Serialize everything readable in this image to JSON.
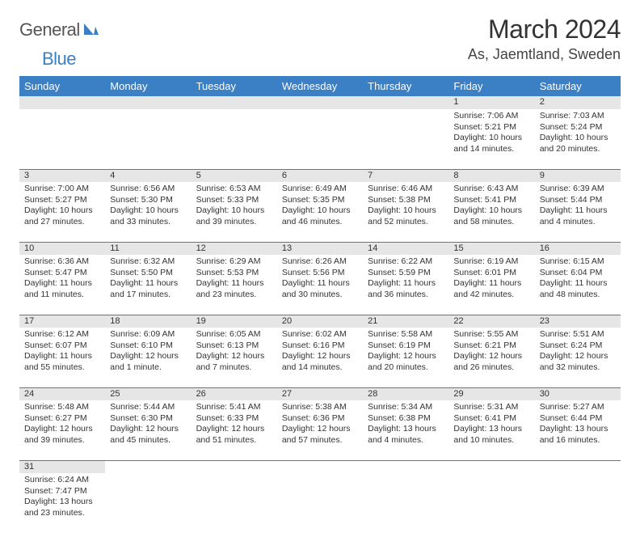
{
  "brand": {
    "name1": "General",
    "name2": "Blue"
  },
  "title": "March 2024",
  "location": "As, Jaemtland, Sweden",
  "colors": {
    "header_bg": "#3b7fc4",
    "header_fg": "#ffffff",
    "daynum_bg": "#e6e6e6",
    "rule": "#3b7fc4",
    "text": "#333333"
  },
  "weekdays": [
    "Sunday",
    "Monday",
    "Tuesday",
    "Wednesday",
    "Thursday",
    "Friday",
    "Saturday"
  ],
  "weeks": [
    [
      null,
      null,
      null,
      null,
      null,
      {
        "n": "1",
        "sr": "Sunrise: 7:06 AM",
        "ss": "Sunset: 5:21 PM",
        "d1": "Daylight: 10 hours",
        "d2": "and 14 minutes."
      },
      {
        "n": "2",
        "sr": "Sunrise: 7:03 AM",
        "ss": "Sunset: 5:24 PM",
        "d1": "Daylight: 10 hours",
        "d2": "and 20 minutes."
      }
    ],
    [
      {
        "n": "3",
        "sr": "Sunrise: 7:00 AM",
        "ss": "Sunset: 5:27 PM",
        "d1": "Daylight: 10 hours",
        "d2": "and 27 minutes."
      },
      {
        "n": "4",
        "sr": "Sunrise: 6:56 AM",
        "ss": "Sunset: 5:30 PM",
        "d1": "Daylight: 10 hours",
        "d2": "and 33 minutes."
      },
      {
        "n": "5",
        "sr": "Sunrise: 6:53 AM",
        "ss": "Sunset: 5:33 PM",
        "d1": "Daylight: 10 hours",
        "d2": "and 39 minutes."
      },
      {
        "n": "6",
        "sr": "Sunrise: 6:49 AM",
        "ss": "Sunset: 5:35 PM",
        "d1": "Daylight: 10 hours",
        "d2": "and 46 minutes."
      },
      {
        "n": "7",
        "sr": "Sunrise: 6:46 AM",
        "ss": "Sunset: 5:38 PM",
        "d1": "Daylight: 10 hours",
        "d2": "and 52 minutes."
      },
      {
        "n": "8",
        "sr": "Sunrise: 6:43 AM",
        "ss": "Sunset: 5:41 PM",
        "d1": "Daylight: 10 hours",
        "d2": "and 58 minutes."
      },
      {
        "n": "9",
        "sr": "Sunrise: 6:39 AM",
        "ss": "Sunset: 5:44 PM",
        "d1": "Daylight: 11 hours",
        "d2": "and 4 minutes."
      }
    ],
    [
      {
        "n": "10",
        "sr": "Sunrise: 6:36 AM",
        "ss": "Sunset: 5:47 PM",
        "d1": "Daylight: 11 hours",
        "d2": "and 11 minutes."
      },
      {
        "n": "11",
        "sr": "Sunrise: 6:32 AM",
        "ss": "Sunset: 5:50 PM",
        "d1": "Daylight: 11 hours",
        "d2": "and 17 minutes."
      },
      {
        "n": "12",
        "sr": "Sunrise: 6:29 AM",
        "ss": "Sunset: 5:53 PM",
        "d1": "Daylight: 11 hours",
        "d2": "and 23 minutes."
      },
      {
        "n": "13",
        "sr": "Sunrise: 6:26 AM",
        "ss": "Sunset: 5:56 PM",
        "d1": "Daylight: 11 hours",
        "d2": "and 30 minutes."
      },
      {
        "n": "14",
        "sr": "Sunrise: 6:22 AM",
        "ss": "Sunset: 5:59 PM",
        "d1": "Daylight: 11 hours",
        "d2": "and 36 minutes."
      },
      {
        "n": "15",
        "sr": "Sunrise: 6:19 AM",
        "ss": "Sunset: 6:01 PM",
        "d1": "Daylight: 11 hours",
        "d2": "and 42 minutes."
      },
      {
        "n": "16",
        "sr": "Sunrise: 6:15 AM",
        "ss": "Sunset: 6:04 PM",
        "d1": "Daylight: 11 hours",
        "d2": "and 48 minutes."
      }
    ],
    [
      {
        "n": "17",
        "sr": "Sunrise: 6:12 AM",
        "ss": "Sunset: 6:07 PM",
        "d1": "Daylight: 11 hours",
        "d2": "and 55 minutes."
      },
      {
        "n": "18",
        "sr": "Sunrise: 6:09 AM",
        "ss": "Sunset: 6:10 PM",
        "d1": "Daylight: 12 hours",
        "d2": "and 1 minute."
      },
      {
        "n": "19",
        "sr": "Sunrise: 6:05 AM",
        "ss": "Sunset: 6:13 PM",
        "d1": "Daylight: 12 hours",
        "d2": "and 7 minutes."
      },
      {
        "n": "20",
        "sr": "Sunrise: 6:02 AM",
        "ss": "Sunset: 6:16 PM",
        "d1": "Daylight: 12 hours",
        "d2": "and 14 minutes."
      },
      {
        "n": "21",
        "sr": "Sunrise: 5:58 AM",
        "ss": "Sunset: 6:19 PM",
        "d1": "Daylight: 12 hours",
        "d2": "and 20 minutes."
      },
      {
        "n": "22",
        "sr": "Sunrise: 5:55 AM",
        "ss": "Sunset: 6:21 PM",
        "d1": "Daylight: 12 hours",
        "d2": "and 26 minutes."
      },
      {
        "n": "23",
        "sr": "Sunrise: 5:51 AM",
        "ss": "Sunset: 6:24 PM",
        "d1": "Daylight: 12 hours",
        "d2": "and 32 minutes."
      }
    ],
    [
      {
        "n": "24",
        "sr": "Sunrise: 5:48 AM",
        "ss": "Sunset: 6:27 PM",
        "d1": "Daylight: 12 hours",
        "d2": "and 39 minutes."
      },
      {
        "n": "25",
        "sr": "Sunrise: 5:44 AM",
        "ss": "Sunset: 6:30 PM",
        "d1": "Daylight: 12 hours",
        "d2": "and 45 minutes."
      },
      {
        "n": "26",
        "sr": "Sunrise: 5:41 AM",
        "ss": "Sunset: 6:33 PM",
        "d1": "Daylight: 12 hours",
        "d2": "and 51 minutes."
      },
      {
        "n": "27",
        "sr": "Sunrise: 5:38 AM",
        "ss": "Sunset: 6:36 PM",
        "d1": "Daylight: 12 hours",
        "d2": "and 57 minutes."
      },
      {
        "n": "28",
        "sr": "Sunrise: 5:34 AM",
        "ss": "Sunset: 6:38 PM",
        "d1": "Daylight: 13 hours",
        "d2": "and 4 minutes."
      },
      {
        "n": "29",
        "sr": "Sunrise: 5:31 AM",
        "ss": "Sunset: 6:41 PM",
        "d1": "Daylight: 13 hours",
        "d2": "and 10 minutes."
      },
      {
        "n": "30",
        "sr": "Sunrise: 5:27 AM",
        "ss": "Sunset: 6:44 PM",
        "d1": "Daylight: 13 hours",
        "d2": "and 16 minutes."
      }
    ],
    [
      {
        "n": "31",
        "sr": "Sunrise: 6:24 AM",
        "ss": "Sunset: 7:47 PM",
        "d1": "Daylight: 13 hours",
        "d2": "and 23 minutes."
      },
      null,
      null,
      null,
      null,
      null,
      null
    ]
  ]
}
